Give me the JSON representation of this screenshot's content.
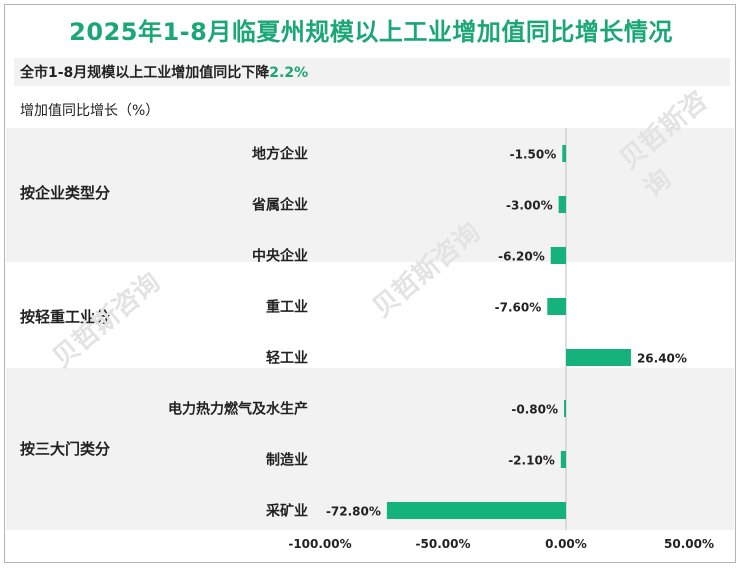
{
  "title": "2025年1-8月临夏州规模以上工业增加值同比增长情况",
  "subtitle": {
    "prefix": "全市1-8月规模以上工业增加值同比下降",
    "highlight": "2.2%"
  },
  "watermark": "贝哲斯咨询",
  "colors": {
    "accent": "#1aa775",
    "bar": "#16b27c",
    "band": "#f2f2f2"
  },
  "chart_data": {
    "type": "bar",
    "orientation": "horizontal",
    "ylabel": "增加值同比增长（%）",
    "xlim": [
      -100,
      50
    ],
    "x_ticks": [
      "-100.00%",
      "-50.00%",
      "0.00%",
      "50.00%"
    ],
    "groups": [
      {
        "name": "按企业类型分",
        "categories": [
          "地方企业",
          "省属企业",
          "中央企业"
        ],
        "values": [
          -1.5,
          -3.0,
          -6.2
        ],
        "labels": [
          "-1.50%",
          "-3.00%",
          "-6.20%"
        ]
      },
      {
        "name": "按轻重工业分",
        "categories": [
          "重工业",
          "轻工业"
        ],
        "values": [
          -7.6,
          26.4
        ],
        "labels": [
          "-7.60%",
          "26.40%"
        ]
      },
      {
        "name": "按三大门类分",
        "categories": [
          "电力热力燃气及水生产",
          "制造业",
          "采矿业"
        ],
        "values": [
          -0.8,
          -2.1,
          -72.8
        ],
        "labels": [
          "-0.80%",
          "-2.10%",
          "-72.80%"
        ]
      }
    ]
  }
}
